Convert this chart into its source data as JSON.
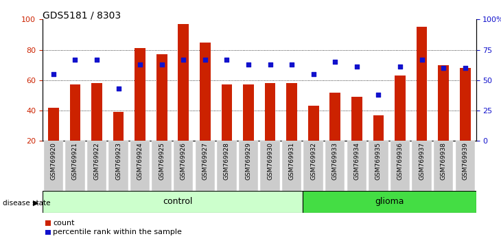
{
  "title": "GDS5181 / 8303",
  "samples": [
    "GSM769920",
    "GSM769921",
    "GSM769922",
    "GSM769923",
    "GSM769924",
    "GSM769925",
    "GSM769926",
    "GSM769927",
    "GSM769928",
    "GSM769929",
    "GSM769930",
    "GSM769931",
    "GSM769932",
    "GSM769933",
    "GSM769934",
    "GSM769935",
    "GSM769936",
    "GSM769937",
    "GSM769938",
    "GSM769939"
  ],
  "bar_values": [
    42,
    57,
    58,
    39,
    81,
    77,
    97,
    85,
    57,
    57,
    58,
    58,
    43,
    52,
    49,
    37,
    63,
    95,
    70,
    68
  ],
  "blue_values_pct": [
    55,
    67,
    67,
    43,
    63,
    63,
    67,
    67,
    67,
    63,
    63,
    63,
    55,
    65,
    61,
    38,
    61,
    67,
    60,
    60
  ],
  "control_count": 12,
  "glioma_count": 8,
  "bar_color": "#cc2200",
  "blue_color": "#1111cc",
  "control_bg": "#ccffcc",
  "glioma_bg": "#44dd44",
  "tick_bg": "#cccccc",
  "ylim_left": [
    20,
    100
  ],
  "grid_values": [
    40,
    60,
    80
  ],
  "right_ticks": [
    0,
    25,
    50,
    75,
    100
  ],
  "right_tick_labels": [
    "0",
    "25",
    "50",
    "75",
    "100%"
  ]
}
